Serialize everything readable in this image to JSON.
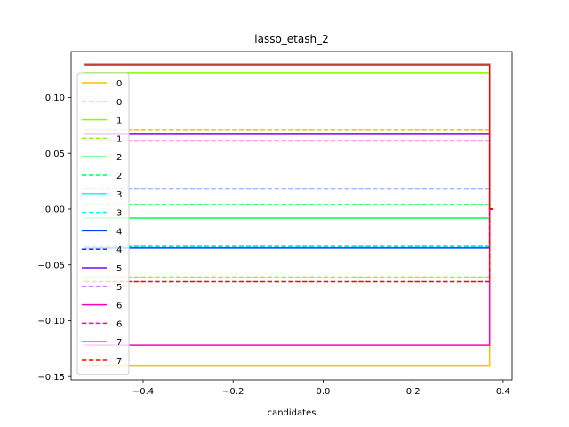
{
  "chart_data": {
    "type": "line",
    "title": "lasso_etash_2",
    "xlabel": "candidates",
    "ylabel": "",
    "xlim": [
      -0.56,
      0.42
    ],
    "ylim": [
      -0.153,
      0.141
    ],
    "x_ticks": [
      -0.4,
      -0.2,
      0.0,
      0.2,
      0.4
    ],
    "x_tick_labels": [
      "−0.4",
      "−0.2",
      "0.0",
      "0.2",
      "0.4"
    ],
    "y_ticks": [
      -0.15,
      -0.1,
      -0.05,
      0.0,
      0.05,
      0.1
    ],
    "y_tick_labels": [
      "−0.15",
      "−0.10",
      "−0.05",
      "0.00",
      "0.05",
      "0.10"
    ],
    "grid": false,
    "legend_position": "upper-left",
    "x_start": -0.53,
    "x_end": 0.37,
    "series": [
      {
        "name": "0",
        "style": "solid",
        "color": "#ffbf00",
        "value": -0.14
      },
      {
        "name": "0",
        "style": "dashed",
        "color": "#ffbf00",
        "value": 0.071
      },
      {
        "name": "1",
        "style": "solid",
        "color": "#80ff00",
        "value": 0.122
      },
      {
        "name": "1",
        "style": "dashed",
        "color": "#80ff00",
        "value": -0.061
      },
      {
        "name": "2",
        "style": "solid",
        "color": "#00ff40",
        "value": -0.008
      },
      {
        "name": "2",
        "style": "dashed",
        "color": "#00ff40",
        "value": 0.004
      },
      {
        "name": "3",
        "style": "solid",
        "color": "#00ffff",
        "value": 0.13
      },
      {
        "name": "3",
        "style": "dashed",
        "color": "#00ffff",
        "value": -0.034
      },
      {
        "name": "4",
        "style": "solid",
        "color": "#0040ff",
        "value": -0.035
      },
      {
        "name": "4",
        "style": "dashed",
        "color": "#0040ff",
        "value": 0.018
      },
      {
        "name": "5",
        "style": "solid",
        "color": "#8000ff",
        "value": 0.067
      },
      {
        "name": "5",
        "style": "dashed",
        "color": "#8000ff",
        "value": -0.033
      },
      {
        "name": "6",
        "style": "solid",
        "color": "#ff00bf",
        "value": -0.122
      },
      {
        "name": "6",
        "style": "dashed",
        "color": "#ff00bf",
        "value": 0.061
      },
      {
        "name": "7",
        "style": "solid",
        "color": "#ff0000",
        "value": 0.129
      },
      {
        "name": "7",
        "style": "dashed",
        "color": "#ff0000",
        "value": -0.065
      }
    ]
  }
}
